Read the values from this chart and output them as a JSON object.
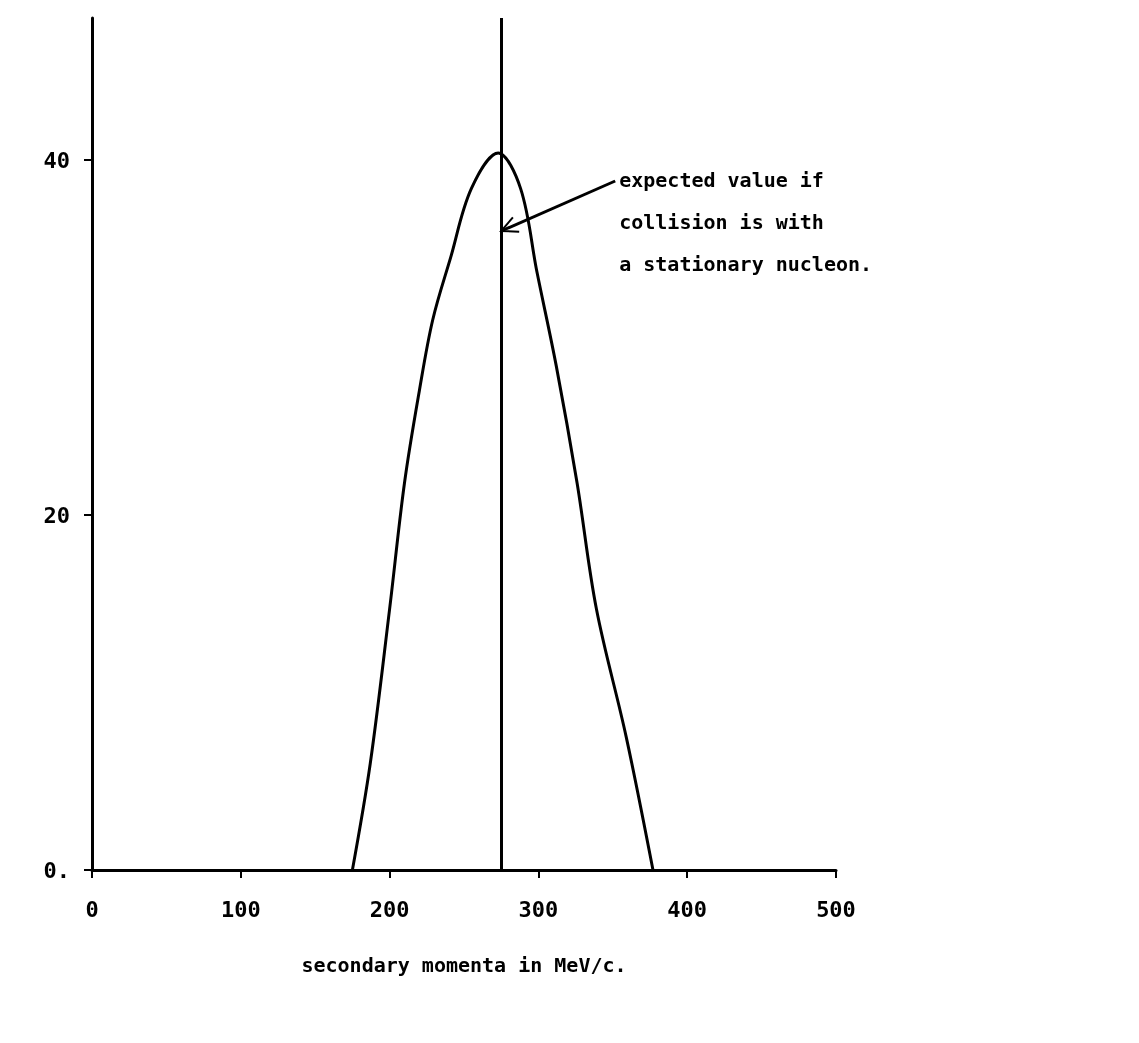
{
  "chart_data": {
    "type": "line",
    "xlabel": "secondary momenta in MeV/c.",
    "x": [
      175,
      187,
      200,
      210,
      220,
      229,
      241,
      255,
      273,
      288,
      299,
      312,
      326,
      339,
      359,
      377
    ],
    "values": [
      0,
      6,
      14.7,
      21.8,
      27,
      31,
      34.5,
      38.4,
      40.4,
      38.4,
      33.7,
      28.4,
      21.8,
      14.7,
      7.5,
      0
    ],
    "color": "#000000",
    "marker": "none",
    "line_style": "solid",
    "xlim": [
      0,
      500
    ],
    "xticks": [
      0,
      100,
      200,
      300,
      400,
      500
    ],
    "ylim": [
      0,
      48
    ],
    "yticks": [
      {
        "value": 0,
        "label": "0."
      },
      20,
      40
    ],
    "ref_lines": [
      {
        "axis": "x",
        "value": 275,
        "color": "#000000"
      }
    ],
    "annotations": [
      {
        "text": "expected value if\ncollision is with\na stationary nucleon.",
        "x": 275,
        "y": 36
      }
    ]
  }
}
